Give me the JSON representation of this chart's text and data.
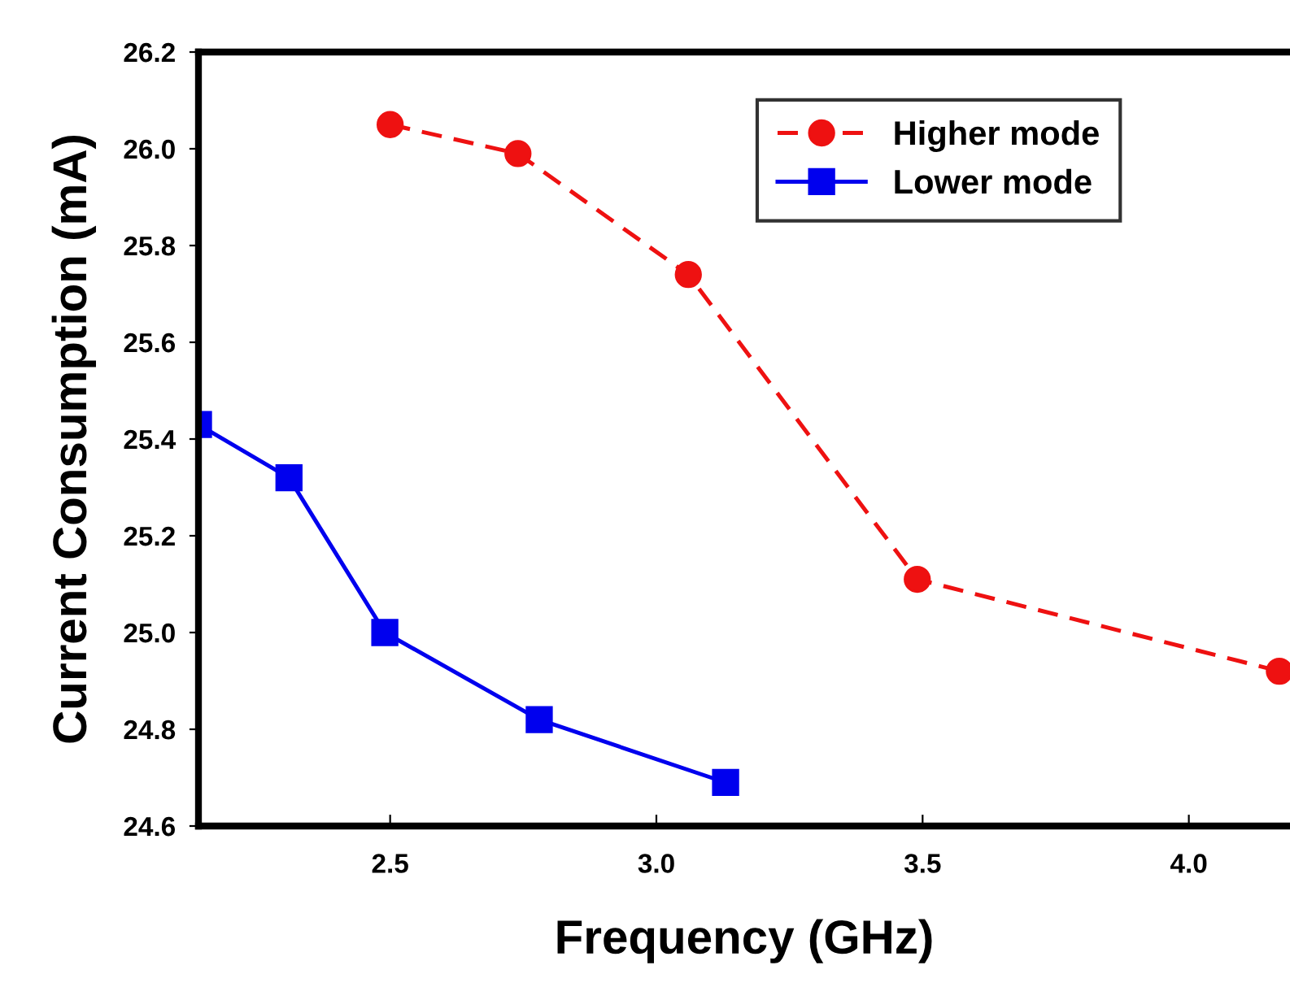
{
  "chart_data": {
    "type": "line",
    "xlabel": "Frequency (GHz)",
    "ylabel": "Current Consumption (mA)",
    "xlim": [
      2.14,
      4.19
    ],
    "xticks": [
      2.5,
      {
        "value": 3,
        "label": "3.0"
      },
      3.5,
      {
        "value": 4,
        "label": "4.0"
      }
    ],
    "ylim": [
      24.6,
      26.2
    ],
    "yticks": [
      24.6,
      24.8,
      {
        "value": 25,
        "label": "25.0"
      },
      25.2,
      25.4,
      25.6,
      25.8,
      {
        "value": 26,
        "label": "26.0"
      },
      26.2
    ],
    "grid": false,
    "legend": "top right",
    "series": [
      {
        "name": "Higher mode",
        "color": "#ee1111",
        "marker": "circle",
        "line_style": "dashed",
        "x": [
          2.5,
          2.74,
          3.06,
          3.49,
          4.17
        ],
        "values": [
          26.05,
          25.99,
          25.74,
          25.11,
          24.92
        ]
      },
      {
        "name": "Lower mode",
        "color": "#0000ee",
        "marker": "square",
        "line_style": "solid",
        "x": [
          2.14,
          2.31,
          2.49,
          2.78,
          3.13
        ],
        "values": [
          25.43,
          25.32,
          25.0,
          24.82,
          24.69
        ]
      }
    ]
  }
}
